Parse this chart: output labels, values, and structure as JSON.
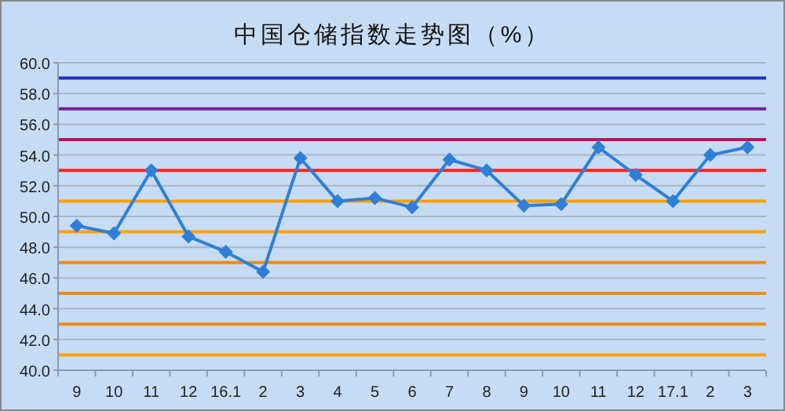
{
  "chart_data": {
    "type": "line",
    "title": "中国仓储指数走势图（%）",
    "categories": [
      "9",
      "10",
      "11",
      "12",
      "16.1",
      "2",
      "3",
      "4",
      "5",
      "6",
      "7",
      "8",
      "9",
      "10",
      "11",
      "12",
      "17.1",
      "2",
      "3"
    ],
    "series": [
      {
        "color": "#2f7fd6",
        "values": [
          49.4,
          48.9,
          53.0,
          48.7,
          47.7,
          46.4,
          53.8,
          51.0,
          51.2,
          50.6,
          53.7,
          53.0,
          50.7,
          50.8,
          54.5,
          52.7,
          51.0,
          54.0,
          54.5
        ]
      }
    ],
    "ylim": [
      40,
      60
    ],
    "yticks": [
      {
        "value": 40,
        "label": "40.0"
      },
      {
        "value": 42,
        "label": "42.0"
      },
      {
        "value": 44,
        "label": "44.0"
      },
      {
        "value": 46,
        "label": "46.0"
      },
      {
        "value": 48,
        "label": "48.0"
      },
      {
        "value": 50,
        "label": "50.0"
      },
      {
        "value": 52,
        "label": "52.0"
      },
      {
        "value": 54,
        "label": "54.0"
      },
      {
        "value": 56,
        "label": "56.0"
      },
      {
        "value": 58,
        "label": "58.0"
      },
      {
        "value": 60,
        "label": "60.0"
      }
    ],
    "grid": "y",
    "marker": "diamond",
    "line_style": "solid",
    "ref_lines": [
      {
        "axis": "y",
        "value": 41,
        "color": "#ffa000"
      },
      {
        "axis": "y",
        "value": 43,
        "color": "#f08c10"
      },
      {
        "axis": "y",
        "value": 45,
        "color": "#f08c10"
      },
      {
        "axis": "y",
        "value": 47,
        "color": "#f08c10"
      },
      {
        "axis": "y",
        "value": 49,
        "color": "#ffa000"
      },
      {
        "axis": "y",
        "value": 51,
        "color": "#ffa000"
      },
      {
        "axis": "y",
        "value": 53,
        "color": "#ff2020"
      },
      {
        "axis": "y",
        "value": 55,
        "color": "#c0105a"
      },
      {
        "axis": "y",
        "value": 57,
        "color": "#7020a0"
      },
      {
        "axis": "y",
        "value": 59,
        "color": "#2030c0"
      }
    ]
  }
}
